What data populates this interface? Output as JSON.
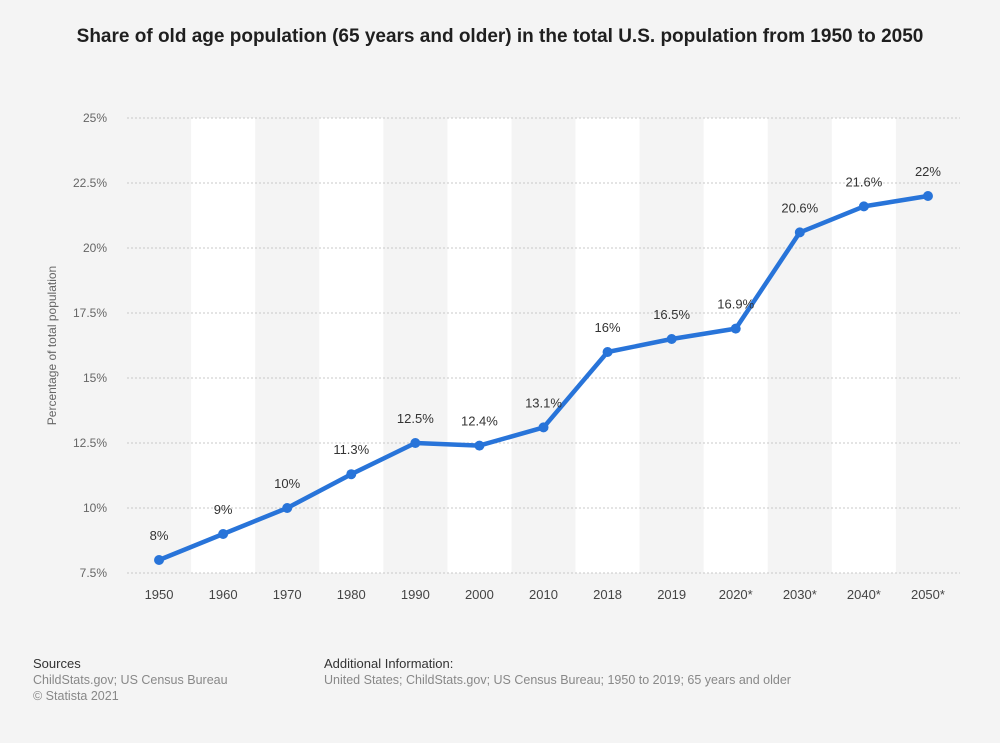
{
  "title": "Share of old age population (65 years and older) in the total U.S. population from 1950 to 2050",
  "chart_data": {
    "type": "line",
    "categories": [
      "1950",
      "1960",
      "1970",
      "1980",
      "1990",
      "2000",
      "2010",
      "2018",
      "2019",
      "2020*",
      "2030*",
      "2040*",
      "2050*"
    ],
    "values": [
      8,
      9,
      10,
      11.3,
      12.5,
      12.4,
      13.1,
      16,
      16.5,
      16.9,
      20.6,
      21.6,
      22
    ],
    "data_labels": [
      "8%",
      "9%",
      "10%",
      "11.3%",
      "12.5%",
      "12.4%",
      "13.1%",
      "16%",
      "16.5%",
      "16.9%",
      "20.6%",
      "21.6%",
      "22%"
    ],
    "ylabel": "Percentage of total population",
    "xlabel": "",
    "ylim": [
      7.5,
      25
    ],
    "yticks": [
      7.5,
      10,
      12.5,
      15,
      17.5,
      20,
      22.5,
      25
    ],
    "ytick_labels": [
      "7.5%",
      "10%",
      "12.5%",
      "15%",
      "17.5%",
      "20%",
      "22.5%",
      "25%"
    ],
    "grid": true,
    "line_color": "#2874d9"
  },
  "footer": {
    "sources_heading": "Sources",
    "sources_line1": "ChildStats.gov; US Census Bureau",
    "sources_line2": "© Statista 2021",
    "info_heading": "Additional Information:",
    "info_text": "United States; ChildStats.gov; US Census Bureau; 1950 to 2019; 65 years and older"
  }
}
